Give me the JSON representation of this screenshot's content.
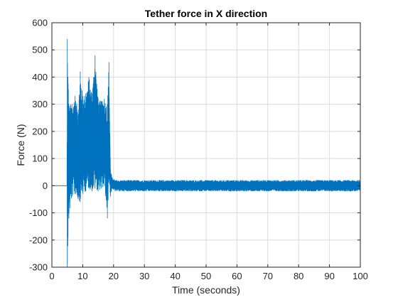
{
  "chart_data": {
    "type": "line",
    "title": "Tether force in X direction",
    "xlabel": "Time (seconds)",
    "ylabel": "Force (N)",
    "xlim": [
      0,
      100
    ],
    "ylim": [
      -300,
      600
    ],
    "xticks": [
      0,
      10,
      20,
      30,
      40,
      50,
      60,
      70,
      80,
      90,
      100
    ],
    "yticks": [
      -300,
      -200,
      -100,
      0,
      100,
      200,
      300,
      400,
      500,
      600
    ],
    "grid": true,
    "legend": "none",
    "series": [
      {
        "color": "#0072BD",
        "envelope": [
          {
            "x": 0,
            "min": 0,
            "max": 0
          },
          {
            "x": 4.9,
            "min": 0,
            "max": 0
          },
          {
            "x": 5.0,
            "min": -300,
            "max": 540
          },
          {
            "x": 5.5,
            "min": -120,
            "max": 300
          },
          {
            "x": 6.5,
            "min": -40,
            "max": 300
          },
          {
            "x": 7.5,
            "min": -30,
            "max": 330
          },
          {
            "x": 8.5,
            "min": -50,
            "max": 280
          },
          {
            "x": 9.2,
            "min": -60,
            "max": 420
          },
          {
            "x": 10.0,
            "min": -30,
            "max": 330
          },
          {
            "x": 11.0,
            "min": -20,
            "max": 340
          },
          {
            "x": 12.0,
            "min": -10,
            "max": 400
          },
          {
            "x": 13.0,
            "min": -20,
            "max": 340
          },
          {
            "x": 14.0,
            "min": -10,
            "max": 480
          },
          {
            "x": 15.0,
            "min": -20,
            "max": 320
          },
          {
            "x": 16.0,
            "min": -10,
            "max": 310
          },
          {
            "x": 17.0,
            "min": 0,
            "max": 320
          },
          {
            "x": 18.0,
            "min": -120,
            "max": 300
          },
          {
            "x": 18.5,
            "min": 10,
            "max": 455
          },
          {
            "x": 19.0,
            "min": -40,
            "max": 60
          },
          {
            "x": 19.5,
            "min": -10,
            "max": 30
          },
          {
            "x": 20.5,
            "min": -20,
            "max": 20
          },
          {
            "x": 30,
            "min": -20,
            "max": 20
          },
          {
            "x": 40,
            "min": -20,
            "max": 20
          },
          {
            "x": 50,
            "min": -20,
            "max": 20
          },
          {
            "x": 60,
            "min": -20,
            "max": 20
          },
          {
            "x": 70,
            "min": -20,
            "max": 20
          },
          {
            "x": 80,
            "min": -20,
            "max": 20
          },
          {
            "x": 90,
            "min": -20,
            "max": 20
          },
          {
            "x": 100,
            "min": -20,
            "max": 20
          }
        ]
      }
    ]
  }
}
